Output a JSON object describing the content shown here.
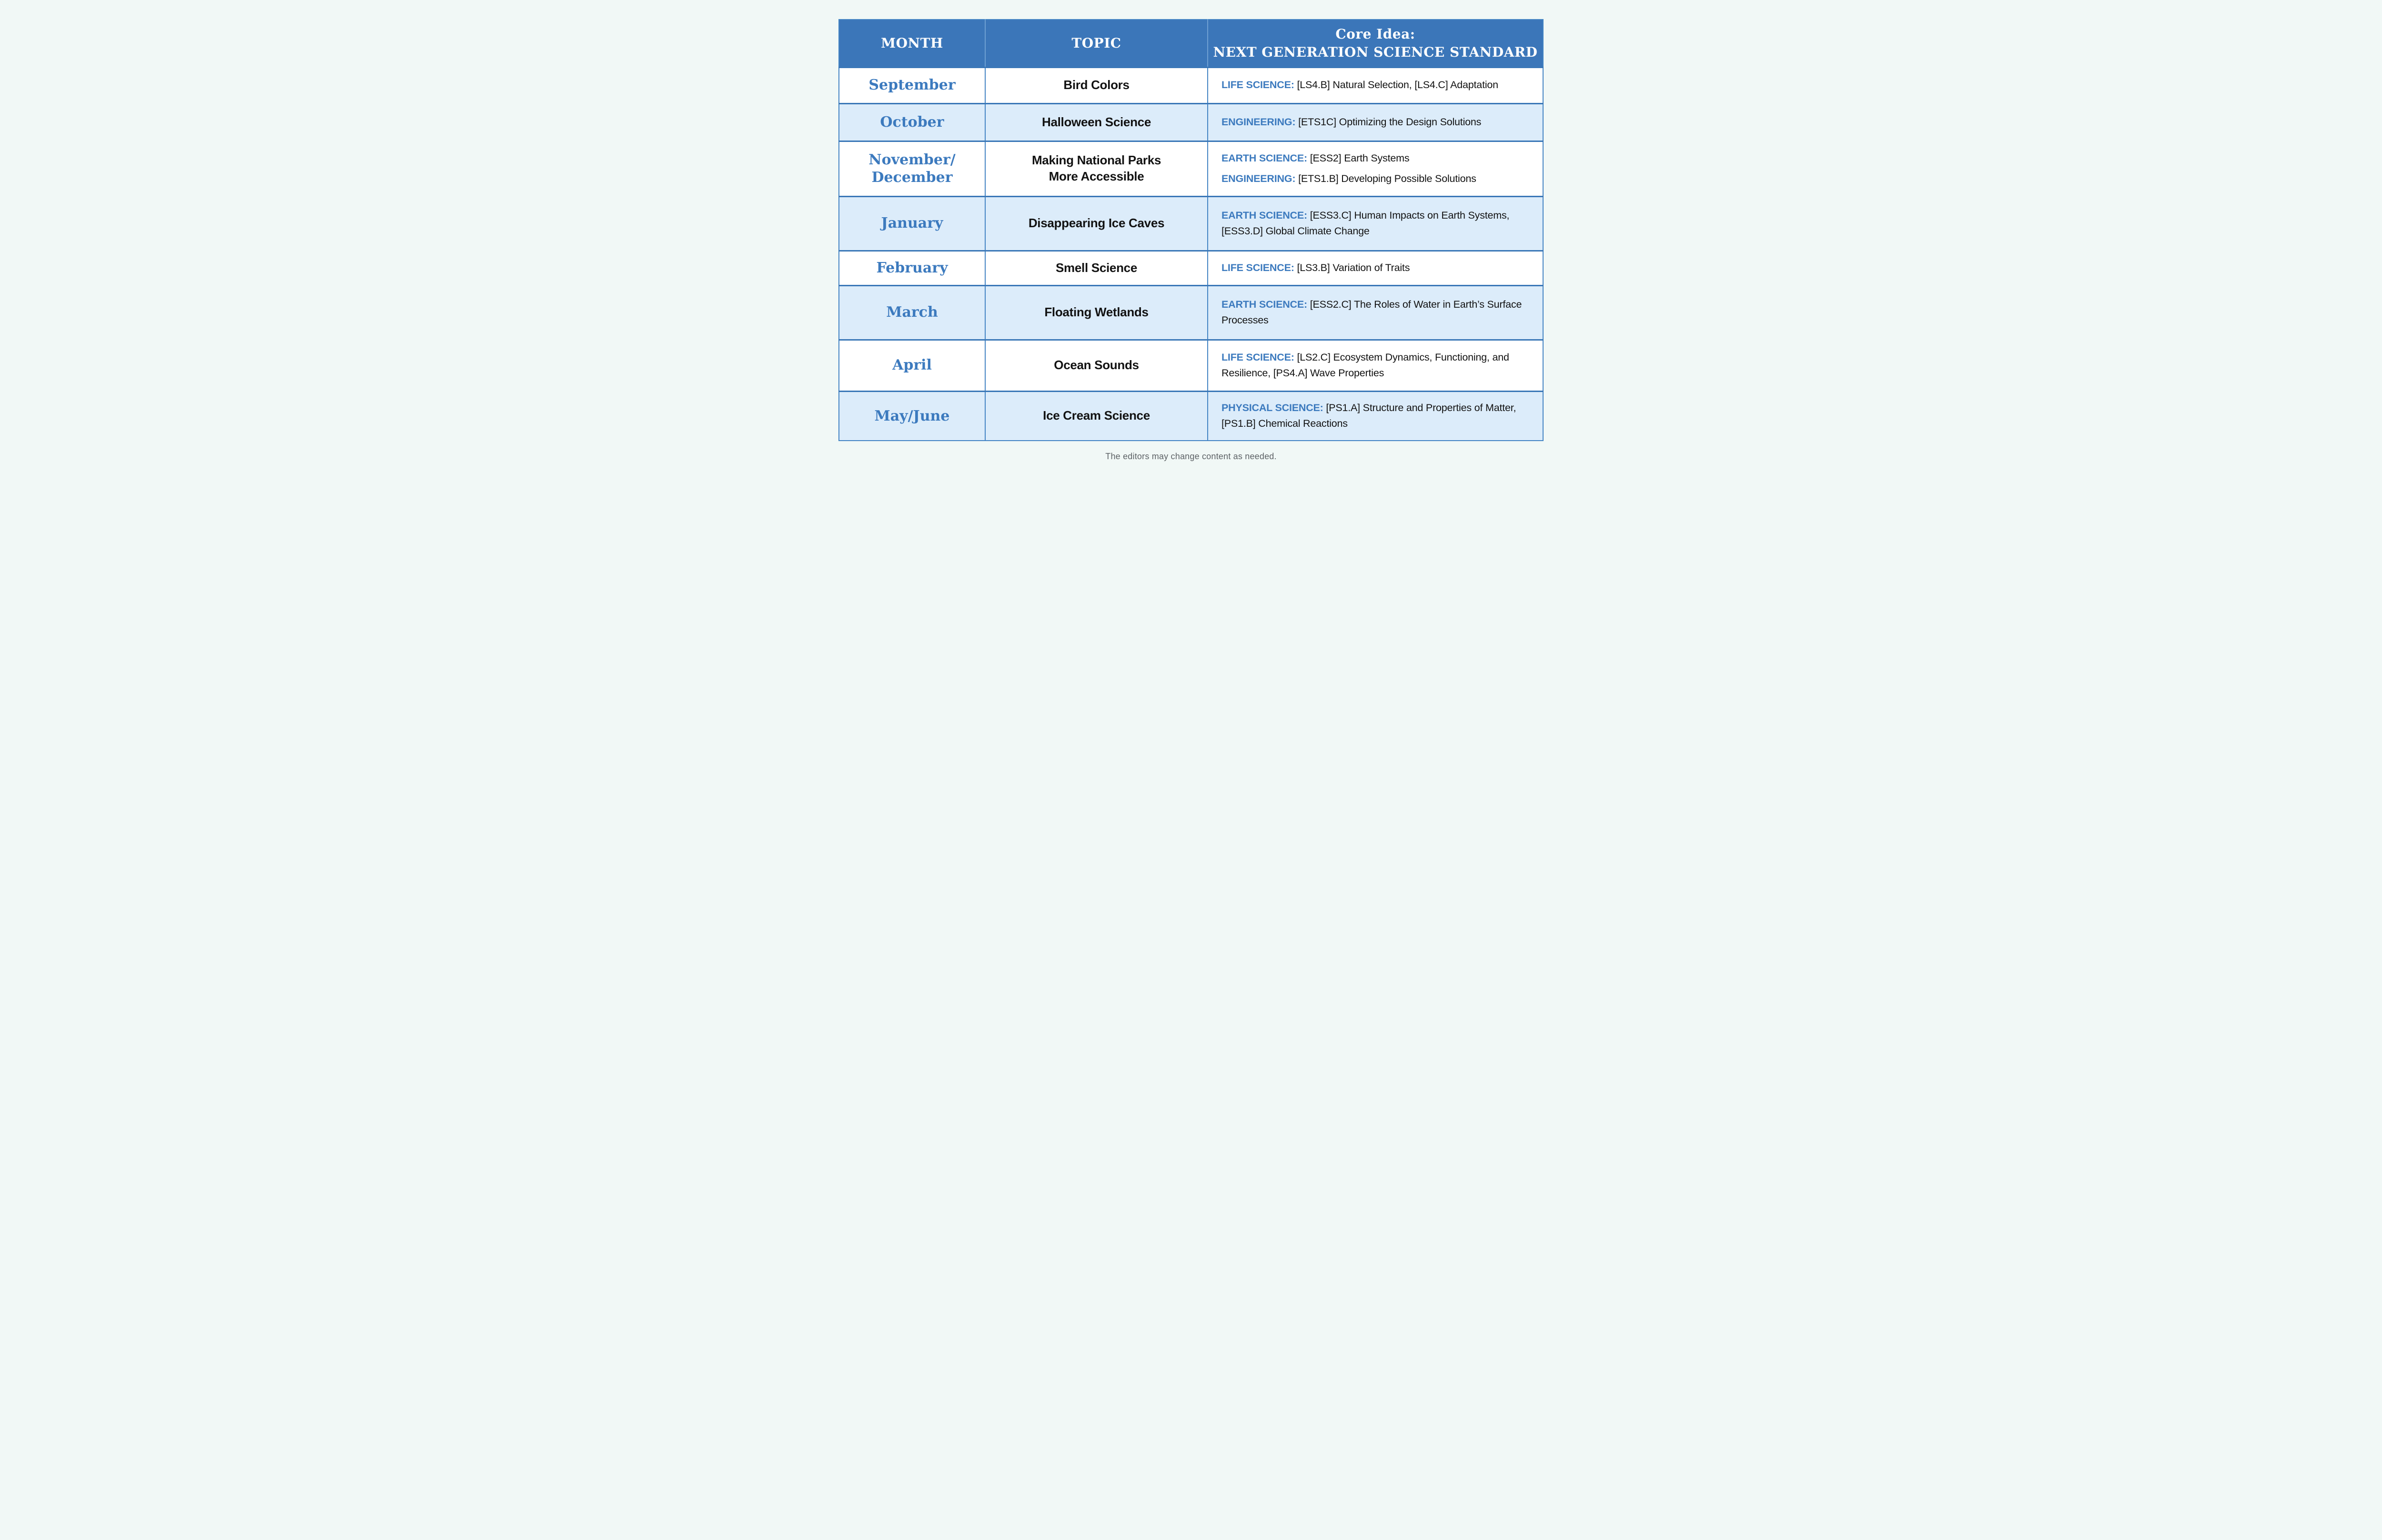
{
  "table": {
    "headers": {
      "month": "MONTH",
      "topic": "TOPIC",
      "core_line1": "Core Idea:",
      "core_line2": "NEXT GENERATION SCIENCE STANDARD"
    },
    "rows": [
      {
        "month": "September",
        "topic": "Bird Colors",
        "standards": [
          {
            "label": "LIFE SCIENCE:",
            "text": "[LS4.B] Natural Selection, [LS4.C] Adaptation"
          }
        ]
      },
      {
        "month": "October",
        "topic": "Halloween Science",
        "standards": [
          {
            "label": "ENGINEERING:",
            "text": "[ETS1C] Optimizing the Design Solutions"
          }
        ]
      },
      {
        "month": "November/\nDecember",
        "topic": "Making National Parks\nMore Accessible",
        "standards": [
          {
            "label": "EARTH SCIENCE:",
            "text": "[ESS2] Earth Systems"
          },
          {
            "label": "ENGINEERING:",
            "text": "[ETS1.B] Developing Possible Solutions"
          }
        ]
      },
      {
        "month": "January",
        "topic": "Disappearing Ice Caves",
        "standards": [
          {
            "label": "EARTH SCIENCE:",
            "text": "[ESS3.C] Human Impacts on Earth Systems, [ESS3.D] Global Climate Change"
          }
        ]
      },
      {
        "month": "February",
        "topic": "Smell Science",
        "standards": [
          {
            "label": "LIFE SCIENCE:",
            "text": "[LS3.B] Variation of Traits"
          }
        ]
      },
      {
        "month": "March",
        "topic": "Floating Wetlands",
        "standards": [
          {
            "label": "EARTH SCIENCE:",
            "text": "[ESS2.C] The Roles of Water in Earth’s Surface Processes"
          }
        ]
      },
      {
        "month": "April",
        "topic": "Ocean Sounds",
        "standards": [
          {
            "label": "LIFE SCIENCE:",
            "text": "[LS2.C] Ecosystem Dynamics, Functioning, and Resilience, [PS4.A] Wave Properties"
          }
        ]
      },
      {
        "month": "May/June",
        "topic": "Ice Cream Science",
        "standards": [
          {
            "label": "PHYSICAL SCIENCE:",
            "text": "[PS1.A] Structure and Properties of Matter, [PS1.B] Chemical Reactions"
          }
        ]
      }
    ]
  },
  "footer": {
    "note": "The editors may change content as needed."
  },
  "colors": {
    "header-bg": "#3b76b9",
    "accent-blue": "#3c7abe",
    "row-alt-bg": "#dcecfa",
    "grid-blue": "#4585c4",
    "row-divider-blue": "#3a77b7",
    "text-dark": "#121212",
    "footer-gray": "#5d6266",
    "page-bg": "#f1f8f6"
  }
}
